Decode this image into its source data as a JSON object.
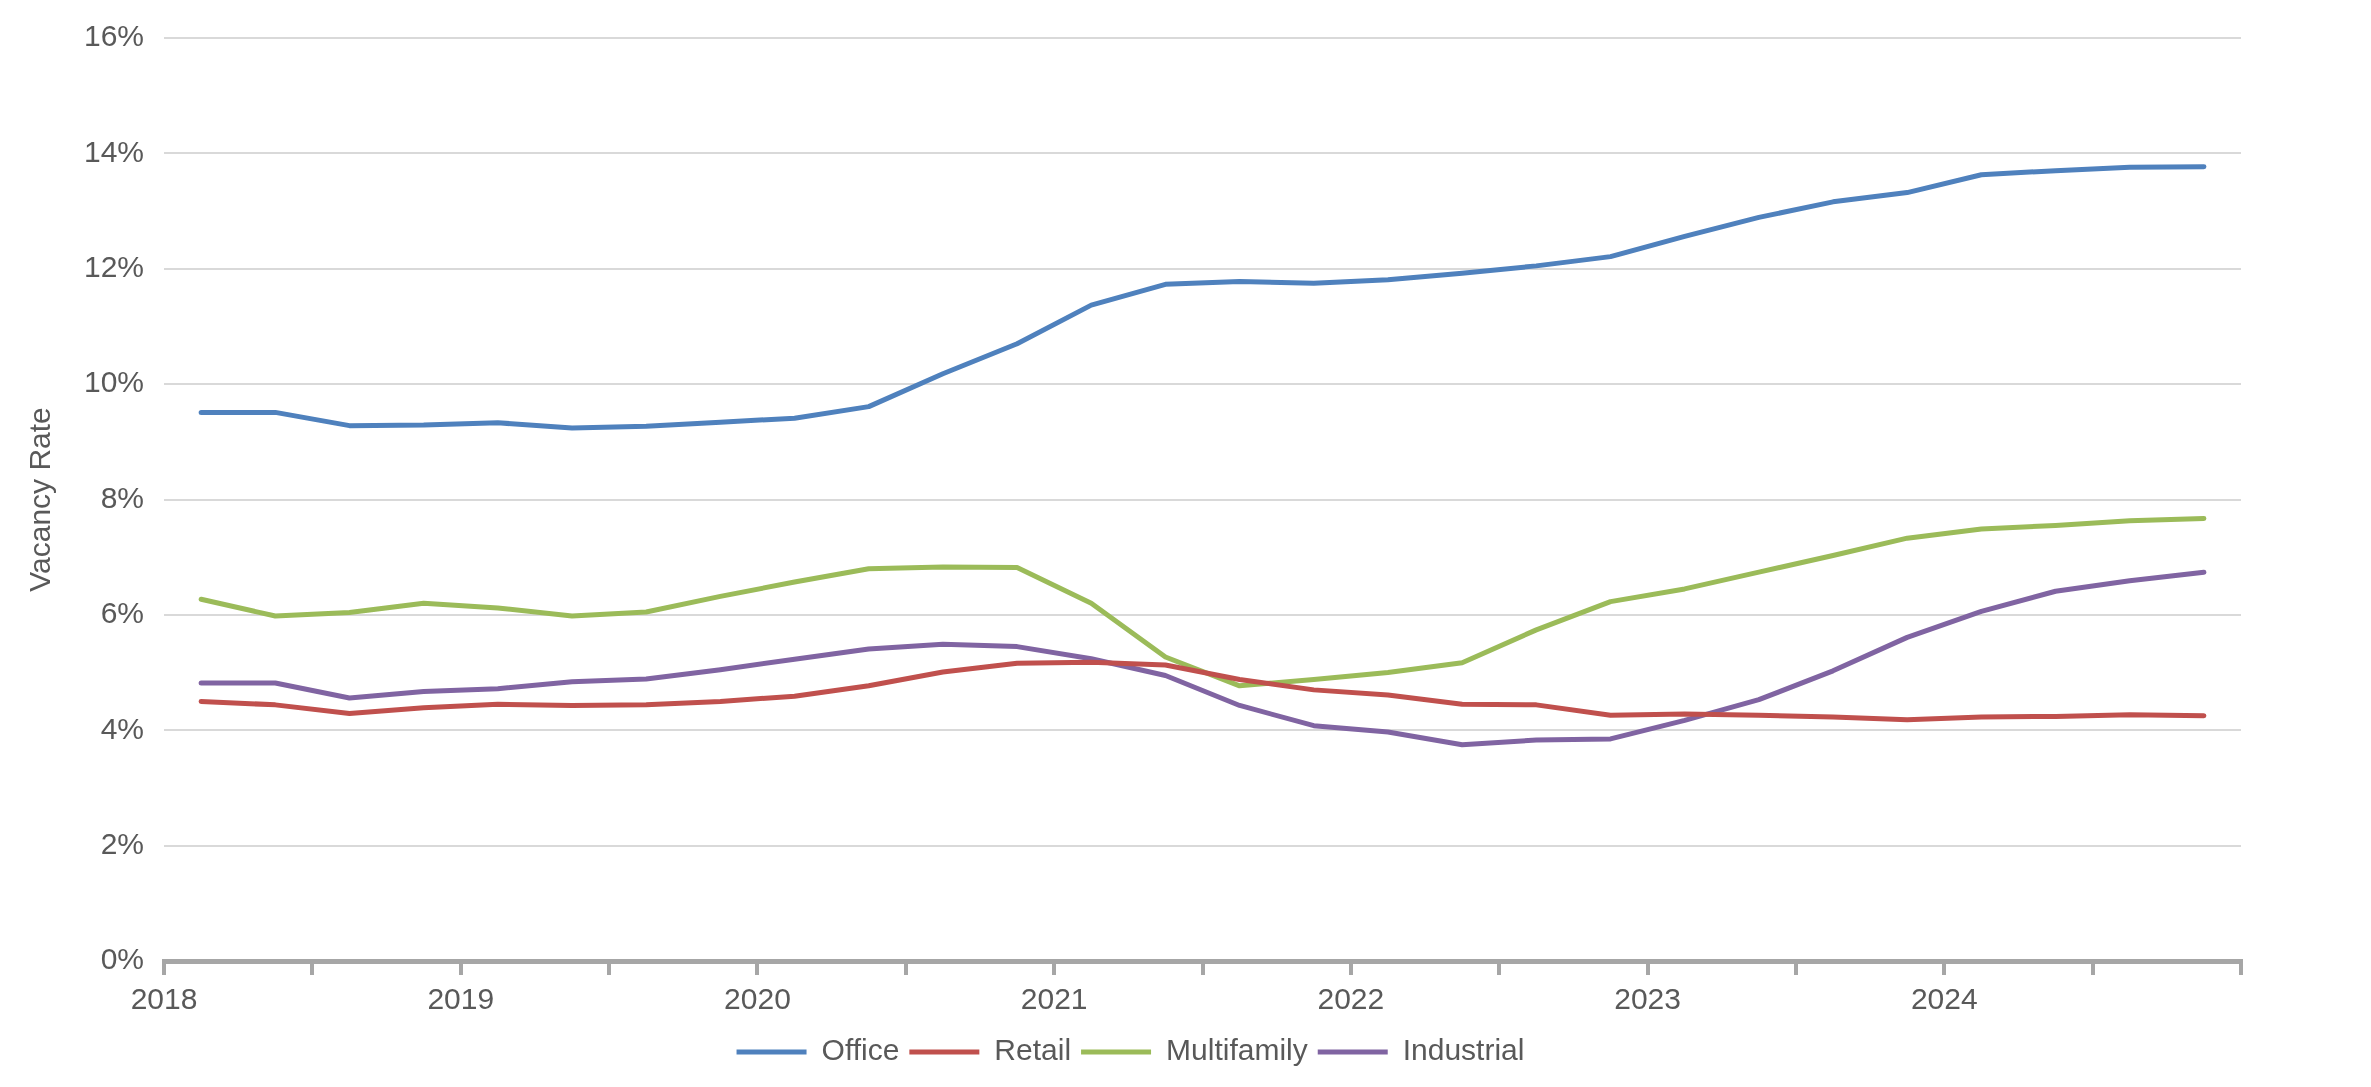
{
  "chart_data": {
    "type": "line",
    "ylabel": "Vacancy Rate",
    "x": [
      2018.125,
      2018.375,
      2018.625,
      2018.875,
      2019.125,
      2019.375,
      2019.625,
      2019.875,
      2020.125,
      2020.375,
      2020.625,
      2020.875,
      2021.125,
      2021.375,
      2021.625,
      2021.875,
      2022.125,
      2022.375,
      2022.625,
      2022.875,
      2023.125,
      2023.375,
      2023.625,
      2023.875,
      2024.125,
      2024.375,
      2024.625,
      2024.875
    ],
    "series": [
      {
        "name": "Office",
        "color": "#4f81bd",
        "values": [
          9.51,
          9.51,
          9.28,
          9.29,
          9.33,
          9.24,
          9.27,
          9.34,
          9.41,
          9.61,
          10.18,
          10.7,
          11.37,
          11.73,
          11.78,
          11.75,
          11.81,
          11.92,
          12.05,
          12.21,
          12.56,
          12.89,
          13.16,
          13.32,
          13.63,
          13.7,
          13.76,
          13.77
        ]
      },
      {
        "name": "Retail",
        "color": "#c0504d",
        "values": [
          4.5,
          4.44,
          4.29,
          4.39,
          4.45,
          4.43,
          4.44,
          4.5,
          4.59,
          4.77,
          5.01,
          5.16,
          5.18,
          5.13,
          4.88,
          4.7,
          4.61,
          4.45,
          4.44,
          4.26,
          4.28,
          4.26,
          4.23,
          4.18,
          4.23,
          4.24,
          4.27,
          4.25
        ]
      },
      {
        "name": "Multifamily",
        "color": "#9bbb59",
        "values": [
          6.27,
          5.98,
          6.04,
          6.2,
          6.12,
          5.98,
          6.05,
          6.32,
          6.57,
          6.8,
          6.83,
          6.82,
          6.2,
          5.27,
          4.77,
          4.88,
          5.0,
          5.17,
          5.74,
          6.23,
          6.45,
          6.74,
          7.03,
          7.33,
          7.49,
          7.55,
          7.63,
          7.67
        ]
      },
      {
        "name": "Industrial",
        "color": "#8064a2",
        "values": [
          4.82,
          4.82,
          4.56,
          4.67,
          4.72,
          4.84,
          4.89,
          5.05,
          5.23,
          5.41,
          5.49,
          5.45,
          5.24,
          4.95,
          4.43,
          4.08,
          3.97,
          3.75,
          3.83,
          3.85,
          4.17,
          4.53,
          5.03,
          5.61,
          6.06,
          6.41,
          6.59,
          6.74
        ]
      }
    ],
    "xlim": [
      2018,
      2025
    ],
    "xticks": [
      2018,
      {
        "value": 2018.5,
        "label": null
      },
      2019,
      {
        "value": 2019.5,
        "label": null
      },
      2020,
      {
        "value": 2020.5,
        "label": null
      },
      2021,
      {
        "value": 2021.5,
        "label": null
      },
      2022,
      {
        "value": 2022.5,
        "label": null
      },
      2023,
      {
        "value": 2023.5,
        "label": null
      },
      2024,
      {
        "value": 2024.5,
        "label": null
      },
      {
        "value": 2025,
        "label": null
      }
    ],
    "ylim": [
      0,
      16
    ],
    "yticks": [
      {
        "value": 0,
        "label": "0%"
      },
      {
        "value": 2,
        "label": "2%"
      },
      {
        "value": 4,
        "label": "4%"
      },
      {
        "value": 6,
        "label": "6%"
      },
      {
        "value": 8,
        "label": "8%"
      },
      {
        "value": 10,
        "label": "10%"
      },
      {
        "value": 12,
        "label": "12%"
      },
      {
        "value": 14,
        "label": "14%"
      },
      {
        "value": 16,
        "label": "16%"
      }
    ],
    "grid": "y",
    "legend": "bottom",
    "marker": "none",
    "line_style": "solid"
  }
}
